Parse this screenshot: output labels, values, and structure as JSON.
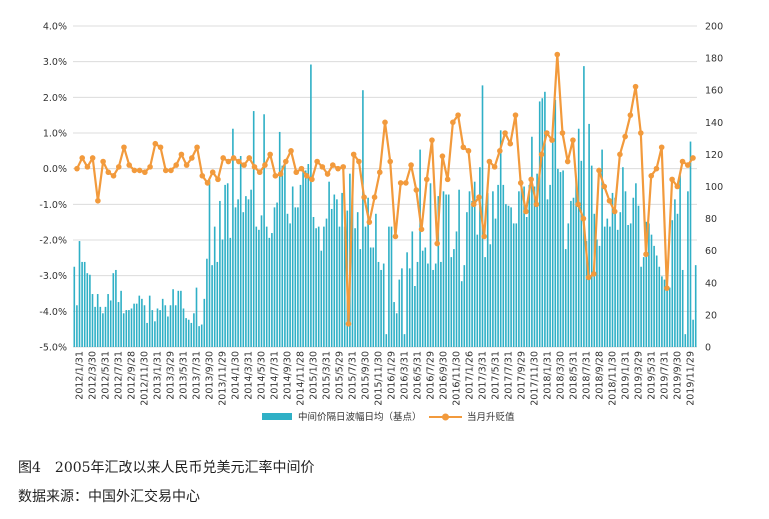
{
  "chart_data": {
    "type": "bar+line",
    "caption": "图4　2005年汇改以来人民币兑美元汇率中间价",
    "source": "数据来源：中国外汇交易中心",
    "y_left": {
      "ticks": [
        "4.0%",
        "3.0%",
        "2.0%",
        "1.0%",
        "0.0%",
        "-1.0%",
        "-2.0%",
        "-3.0%",
        "-4.0%",
        "-5.0%"
      ],
      "range": [
        -5,
        4
      ]
    },
    "y_right": {
      "ticks": [
        "200",
        "180",
        "160",
        "140",
        "120",
        "100",
        "80",
        "60",
        "40",
        "20",
        "0"
      ],
      "range": [
        0,
        200
      ]
    },
    "grid": true,
    "x_tick_labels": [
      "2012/1/31",
      "2012/3/30",
      "2012/5/31",
      "2012/7/31",
      "2012/9/28",
      "2012/11/30",
      "2013/1/31",
      "2013/3/29",
      "2013/5/31",
      "2013/7/31",
      "2013/9/30",
      "2013/11/29",
      "2014/1/30",
      "2014/3/31",
      "2014/5/30",
      "2014/7/31",
      "2014/9/30",
      "2014/11/28",
      "2015/1/30",
      "2015/3/31",
      "2015/5/29",
      "2015/7/31",
      "2015/9/30",
      "2015/11/30",
      "2016/1/29",
      "2016/3/31",
      "2016/5/31",
      "2016/7/29",
      "2016/9/30",
      "2016/11/30",
      "2017/1/26",
      "2017/3/31",
      "2017/5/31",
      "2017/7/31",
      "2017/9/29",
      "2017/11/30",
      "2018/1/31",
      "2018/3/30",
      "2018/5/31",
      "2018/7/31",
      "2018/9/28",
      "2018/11/30",
      "2019/1/31",
      "2019/3/29",
      "2019/5/31",
      "2019/7/31",
      "2019/9/30",
      "2019/11/29"
    ],
    "series": [
      {
        "name": "中间价隔日波幅日均（基点）",
        "type": "bar",
        "axis": "right",
        "color": "#2fb0c6",
        "values": [
          50,
          26,
          66,
          53,
          53,
          46,
          45,
          33,
          25,
          33,
          25,
          21,
          25,
          33,
          29,
          46,
          48,
          28,
          35,
          21,
          23,
          23,
          24,
          27,
          27,
          32,
          30,
          26,
          15,
          32,
          23,
          16,
          24,
          23,
          30,
          26,
          19,
          26,
          36,
          26,
          35,
          35,
          24,
          18,
          17,
          15,
          21,
          37,
          13,
          14,
          30,
          55,
          104,
          51,
          75,
          53,
          91,
          67,
          101,
          102,
          68,
          136,
          87,
          92,
          119,
          84,
          94,
          92,
          98,
          147,
          75,
          73,
          82,
          145,
          75,
          68,
          71,
          87,
          90,
          134,
          113,
          114,
          83,
          77,
          100,
          87,
          87,
          101,
          112,
          110,
          114,
          176,
          81,
          74,
          75,
          60,
          75,
          80,
          103,
          86,
          95,
          92,
          75,
          96,
          75,
          85,
          108,
          97,
          74,
          84,
          61,
          160,
          75,
          93,
          62,
          62,
          83,
          53,
          48,
          52,
          8,
          75,
          75,
          28,
          21,
          42,
          49,
          8,
          59,
          49,
          72,
          38,
          53,
          123,
          60,
          62,
          52,
          102,
          48,
          52,
          94,
          53,
          97,
          95,
          95,
          56,
          61,
          72,
          98,
          41,
          51,
          84,
          97,
          91,
          103,
          70,
          112,
          163,
          56,
          96,
          64,
          97,
          80,
          101,
          135,
          101,
          89,
          88,
          87,
          77,
          77,
          97,
          104,
          100,
          81,
          101,
          131,
          100,
          108,
          153,
          155,
          159,
          92,
          101,
          130,
          154,
          111,
          109,
          110,
          61,
          77,
          91,
          93,
          105,
          136,
          116,
          175,
          66,
          139,
          113,
          83,
          67,
          63,
          123,
          75,
          80,
          75,
          96,
          93,
          73,
          84,
          112,
          97,
          76,
          77,
          93,
          102,
          88,
          50,
          56,
          78,
          77,
          70,
          63,
          57,
          50,
          44,
          42,
          46,
          37,
          79,
          92,
          83,
          107,
          48,
          8,
          97,
          128,
          17,
          51
        ]
      },
      {
        "name": "当月升贬值",
        "type": "line",
        "axis": "left",
        "color": "#f29a3c",
        "values": [
          0.0,
          0.3,
          0.05,
          0.3,
          -0.9,
          0.2,
          -0.1,
          -0.2,
          0.05,
          0.6,
          0.1,
          -0.05,
          -0.05,
          -0.1,
          0.05,
          0.7,
          0.6,
          -0.05,
          -0.05,
          0.1,
          0.4,
          0.1,
          0.3,
          0.6,
          -0.2,
          -0.4,
          -0.1,
          -0.3,
          0.3,
          0.2,
          0.3,
          0.2,
          0.1,
          0.3,
          0.05,
          -0.1,
          0.1,
          0.4,
          -0.2,
          -0.15,
          0.2,
          0.5,
          -0.1,
          0.0,
          -0.2,
          -0.3,
          0.2,
          0.05,
          -0.15,
          0.1,
          0.0,
          0.05,
          -4.35,
          0.4,
          0.2,
          -0.8,
          -1.5,
          -0.8,
          -0.1,
          1.3,
          0.2,
          -1.9,
          -0.4,
          -0.4,
          0.1,
          -0.6,
          -1.7,
          -0.3,
          0.8,
          -2.1,
          0.35,
          -0.3,
          1.3,
          1.5,
          0.6,
          0.5,
          -1.0,
          -0.8,
          -1.9,
          0.2,
          0.05,
          0.5,
          1.0,
          0.7,
          1.5,
          -0.4,
          -1.2,
          -0.3,
          -1.0,
          0.4,
          1.0,
          0.8,
          3.2,
          1.0,
          0.2,
          0.8,
          -1.0,
          -1.4,
          -3.05,
          -2.95,
          -0.05,
          -0.5,
          -0.9,
          -1.2,
          0.4,
          0.9,
          1.5,
          2.3,
          1.0,
          -2.4,
          -0.2,
          0.0,
          0.6,
          -3.35,
          -0.3,
          -0.5,
          0.2,
          0.1,
          0.3
        ]
      }
    ]
  }
}
